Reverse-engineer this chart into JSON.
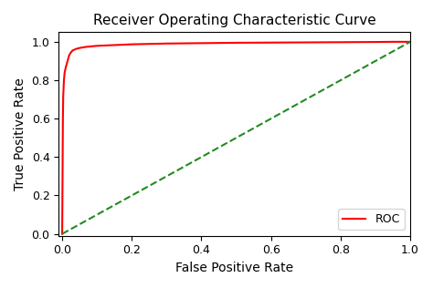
{
  "title": "Receiver Operating Characteristic Curve",
  "xlabel": "False Positive Rate",
  "ylabel": "True Positive Rate",
  "roc_color": "#ff0000",
  "diagonal_color": "#228B22",
  "diagonal_style": "--",
  "roc_linewidth": 1.5,
  "diagonal_linewidth": 1.5,
  "legend_label": "ROC",
  "xlim": [
    -0.01,
    1.0
  ],
  "ylim": [
    -0.01,
    1.05
  ],
  "xticks": [
    0.0,
    0.2,
    0.4,
    0.6,
    0.8,
    1.0
  ],
  "yticks": [
    0.0,
    0.2,
    0.4,
    0.6,
    0.8,
    1.0
  ],
  "figsize": [
    4.74,
    3.16
  ],
  "dpi": 100,
  "title_fontsize": 11,
  "label_fontsize": 10,
  "tick_fontsize": 9,
  "fpr_points": [
    0.0,
    0.001,
    0.002,
    0.003,
    0.005,
    0.007,
    0.01,
    0.013,
    0.017,
    0.02,
    0.025,
    0.03,
    0.04,
    0.05,
    0.07,
    0.1,
    0.15,
    0.2,
    0.3,
    0.4,
    0.5,
    0.6,
    0.7,
    0.8,
    0.9,
    0.95,
    1.0
  ],
  "tpr_points": [
    0.0,
    0.3,
    0.6,
    0.72,
    0.8,
    0.84,
    0.865,
    0.885,
    0.91,
    0.93,
    0.945,
    0.955,
    0.963,
    0.968,
    0.974,
    0.979,
    0.983,
    0.987,
    0.991,
    0.993,
    0.995,
    0.996,
    0.997,
    0.998,
    0.999,
    1.0,
    1.0
  ],
  "axes_facecolor": "#f0f0f0",
  "figure_facecolor": "#ffffff"
}
